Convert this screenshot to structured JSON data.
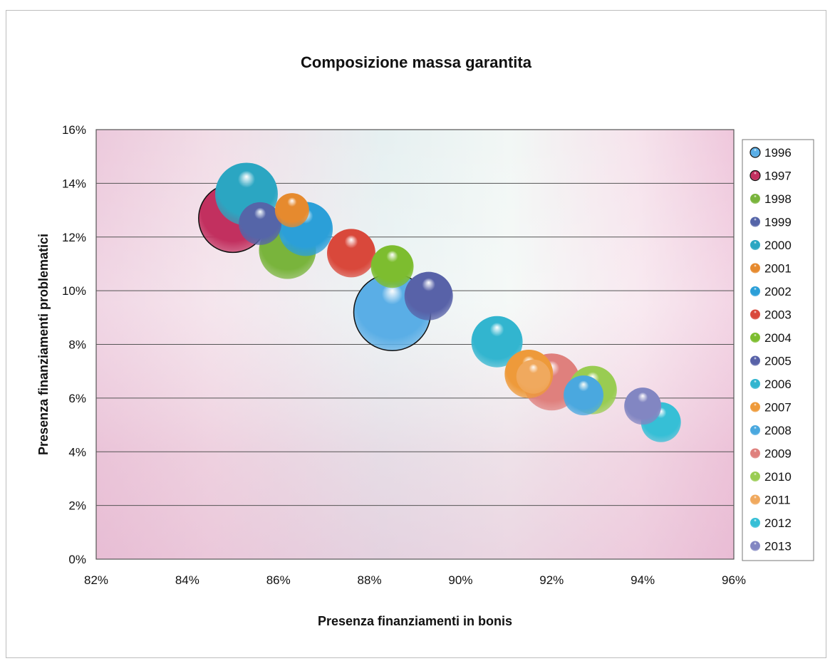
{
  "chart_data": {
    "type": "scatter",
    "title": "Composizione massa garantita",
    "xlabel": "Presenza finanziamenti in bonis",
    "ylabel": "Presenza finanziamenti problematici",
    "xlim": [
      82,
      96
    ],
    "ylim": [
      0,
      16
    ],
    "x_ticks": [
      "82%",
      "84%",
      "86%",
      "88%",
      "90%",
      "92%",
      "94%",
      "96%"
    ],
    "y_ticks": [
      "0%",
      "2%",
      "4%",
      "6%",
      "8%",
      "10%",
      "12%",
      "14%",
      "16%"
    ],
    "grid": "horizontal",
    "legend_position": "right",
    "series": [
      {
        "name": "1996",
        "x": 88.5,
        "y": 9.2,
        "size": 27,
        "color": "#5aaee6"
      },
      {
        "name": "1997",
        "x": 85.0,
        "y": 12.7,
        "size": 24,
        "color": "#c2305f"
      },
      {
        "name": "1998",
        "x": 86.2,
        "y": 11.5,
        "size": 20,
        "color": "#79b43c"
      },
      {
        "name": "1999",
        "x": 85.6,
        "y": 12.5,
        "size": 15,
        "color": "#5565a8"
      },
      {
        "name": "2000",
        "x": 85.3,
        "y": 13.6,
        "size": 22,
        "color": "#2ba6c2"
      },
      {
        "name": "2001",
        "x": 86.3,
        "y": 13.0,
        "size": 12,
        "color": "#e68a2e"
      },
      {
        "name": "2002",
        "x": 86.6,
        "y": 12.3,
        "size": 19,
        "color": "#2b9fd8"
      },
      {
        "name": "2003",
        "x": 87.6,
        "y": 11.4,
        "size": 17,
        "color": "#d9483b"
      },
      {
        "name": "2004",
        "x": 88.5,
        "y": 10.9,
        "size": 15,
        "color": "#7dbd2f"
      },
      {
        "name": "2005",
        "x": 89.3,
        "y": 9.8,
        "size": 17,
        "color": "#5862a8"
      },
      {
        "name": "2006",
        "x": 90.8,
        "y": 8.1,
        "size": 18,
        "color": "#32b5cf"
      },
      {
        "name": "2007",
        "x": 91.5,
        "y": 6.9,
        "size": 17,
        "color": "#ee9a3a"
      },
      {
        "name": "2008",
        "x": 92.7,
        "y": 6.1,
        "size": 14,
        "color": "#4aa8df"
      },
      {
        "name": "2009",
        "x": 92.0,
        "y": 6.6,
        "size": 20,
        "color": "#df807d"
      },
      {
        "name": "2010",
        "x": 92.9,
        "y": 6.3,
        "size": 17,
        "color": "#99cc52"
      },
      {
        "name": "2011",
        "x": 91.6,
        "y": 6.8,
        "size": 12,
        "color": "#f0a95e"
      },
      {
        "name": "2012",
        "x": 94.4,
        "y": 5.1,
        "size": 14,
        "color": "#36bfd6"
      },
      {
        "name": "2013",
        "x": 94.0,
        "y": 5.7,
        "size": 13,
        "color": "#8286c2"
      }
    ]
  }
}
